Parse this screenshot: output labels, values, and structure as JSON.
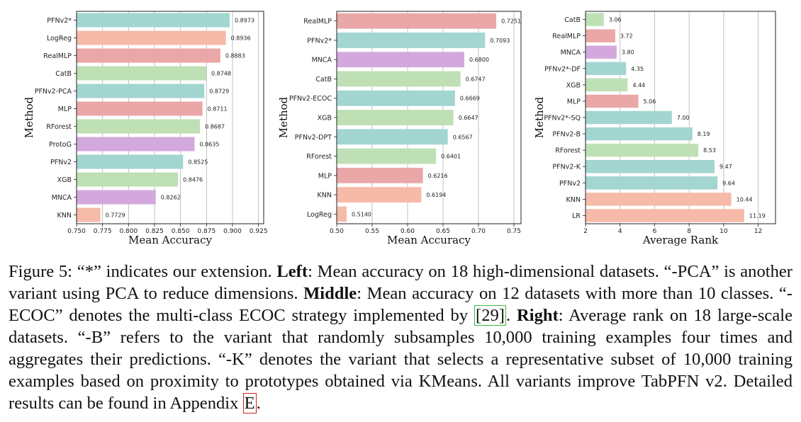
{
  "colors": {
    "teal": "#a3d5d1",
    "salmon": "#f6bba8",
    "red": "#eaa7a7",
    "green": "#bfe0b5",
    "purple": "#d3a9dd",
    "grid": "#b0b0b0",
    "frame": "#222222"
  },
  "chart_data": [
    {
      "type": "bar",
      "orientation": "horizontal",
      "xlabel": "Mean Accuracy",
      "ylabel": "Method",
      "xlim": [
        0.75,
        0.93
      ],
      "xticks": [
        "0.750",
        "0.775",
        "0.800",
        "0.825",
        "0.850",
        "0.875",
        "0.900",
        "0.925"
      ],
      "grid": "vertical",
      "categories": [
        "PFNv2*",
        "LogReg",
        "RealMLP",
        "CatB",
        "PFNv2-PCA",
        "MLP",
        "RForest",
        "ProtoG",
        "PFNv2",
        "XGB",
        "MNCA",
        "KNN"
      ],
      "values": [
        0.8973,
        0.8936,
        0.8883,
        0.8748,
        0.8729,
        0.8711,
        0.8687,
        0.8635,
        0.8525,
        0.8476,
        0.8262,
        0.7729
      ],
      "value_labels": [
        "0.8973",
        "0.8936",
        "0.8883",
        "0.8748",
        "0.8729",
        "0.8711",
        "0.8687",
        "0.8635",
        "0.8525",
        "0.8476",
        "0.8262",
        "0.7729"
      ],
      "bar_colors": [
        "teal",
        "salmon",
        "red",
        "green",
        "teal",
        "red",
        "green",
        "purple",
        "teal",
        "green",
        "purple",
        "salmon"
      ]
    },
    {
      "type": "bar",
      "orientation": "horizontal",
      "xlabel": "Mean Accuracy",
      "ylabel": "Method",
      "xlim": [
        0.5,
        0.76
      ],
      "xticks": [
        "0.50",
        "0.55",
        "0.60",
        "0.65",
        "0.70",
        "0.75"
      ],
      "grid": "vertical",
      "categories": [
        "RealMLP",
        "PFNv2*",
        "MNCA",
        "CatB",
        "PFNv2-ECOC",
        "XGB",
        "PFNv2-DPT",
        "RForest",
        "MLP",
        "KNN",
        "LogReg"
      ],
      "values": [
        0.7251,
        0.7093,
        0.68,
        0.6747,
        0.6669,
        0.6647,
        0.6567,
        0.6401,
        0.6216,
        0.6194,
        0.514
      ],
      "value_labels": [
        "0.7251",
        "0.7093",
        "0.6800",
        "0.6747",
        "0.6669",
        "0.6647",
        "0.6567",
        "0.6401",
        "0.6216",
        "0.6194",
        "0.5140"
      ],
      "bar_colors": [
        "red",
        "teal",
        "purple",
        "green",
        "teal",
        "green",
        "teal",
        "green",
        "red",
        "salmon",
        "salmon"
      ]
    },
    {
      "type": "bar",
      "orientation": "horizontal",
      "xlabel": "Average Rank",
      "ylabel": "Method",
      "xlim": [
        2,
        13
      ],
      "xticks": [
        "2",
        "4",
        "6",
        "8",
        "10",
        "12"
      ],
      "grid": "vertical",
      "categories": [
        "CatB",
        "RealMLP",
        "MNCA",
        "PFNv2*-DF",
        "XGB",
        "MLP",
        "PFNv2*-SQ",
        "PFNv2-B",
        "RForest",
        "PFNv2-K",
        "PFNv2",
        "KNN",
        "LR"
      ],
      "values": [
        3.06,
        3.72,
        3.8,
        4.35,
        4.44,
        5.06,
        7.0,
        8.19,
        8.53,
        9.47,
        9.64,
        10.44,
        11.19
      ],
      "value_labels": [
        "3.06",
        "3.72",
        "3.80",
        "4.35",
        "4.44",
        "5.06",
        "7.00",
        "8.19",
        "8.53",
        "9.47",
        "9.64",
        "10.44",
        "11.19"
      ],
      "bar_colors": [
        "green",
        "red",
        "purple",
        "teal",
        "green",
        "red",
        "teal",
        "teal",
        "green",
        "teal",
        "teal",
        "salmon",
        "salmon"
      ]
    }
  ],
  "caption": {
    "figure_label": "Figure 5:",
    "part1": " “*” indicates our extension. ",
    "left_label": "Left",
    "part2": ": Mean accuracy on 18 high-dimensional datasets. “-PCA” is another variant using PCA to reduce dimensions. ",
    "middle_label": "Middle",
    "part3": ": Mean accuracy on 12 datasets with more than 10 classes. “-ECOC” denotes the multi-class ECOC strategy implemented by ",
    "ref_29": "[29]",
    "part4": ". ",
    "right_label": "Right",
    "part5": ": Average rank on 18 large-scale datasets. “-B” refers to the variant that randomly subsamples 10,000 training examples four times and aggregates their predictions. “-K” denotes the variant that selects a representative subset of 10,000 training examples based on proximity to prototypes obtained via KMeans. All variants improve TabPFN v2. Detailed results can be found in Appendix ",
    "ref_E": "E",
    "part6": "."
  }
}
